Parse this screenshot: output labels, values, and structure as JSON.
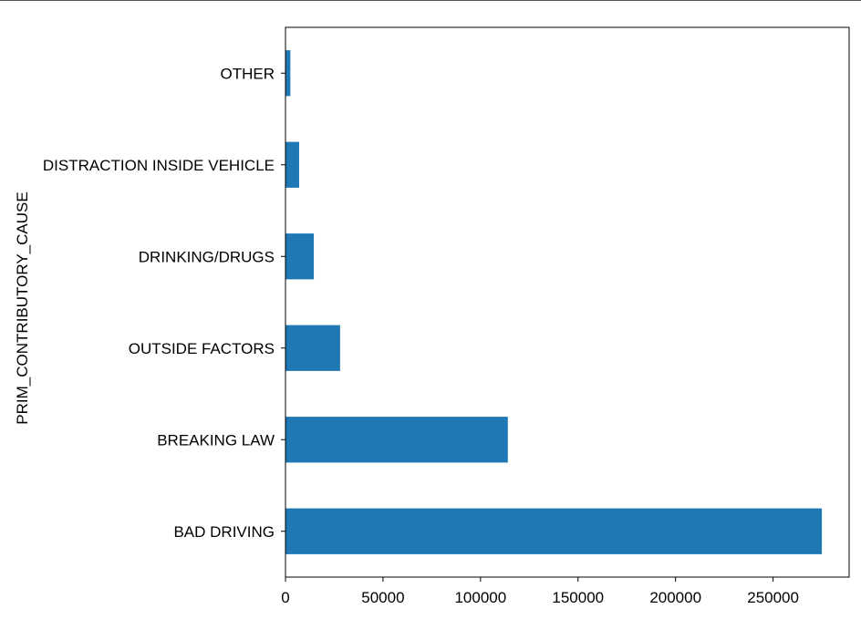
{
  "chart_data": {
    "type": "bar",
    "orientation": "horizontal",
    "ylabel": "PRIM_CONTRIBUTORY_CAUSE",
    "xlabel": "",
    "categories": [
      "BAD DRIVING",
      "BREAKING LAW",
      "OUTSIDE FACTORS",
      "DRINKING/DRUGS",
      "DISTRACTION INSIDE VEHICLE",
      "OTHER"
    ],
    "values": [
      275000,
      114000,
      28000,
      14500,
      7000,
      2500
    ],
    "xlim": [
      0,
      289000
    ],
    "xticks": [
      0,
      50000,
      100000,
      150000,
      200000,
      250000
    ],
    "xtick_labels": [
      "0",
      "50000",
      "100000",
      "150000",
      "200000",
      "250000"
    ],
    "bar_color": "#1f77b4",
    "grid": false,
    "legend": "none"
  }
}
